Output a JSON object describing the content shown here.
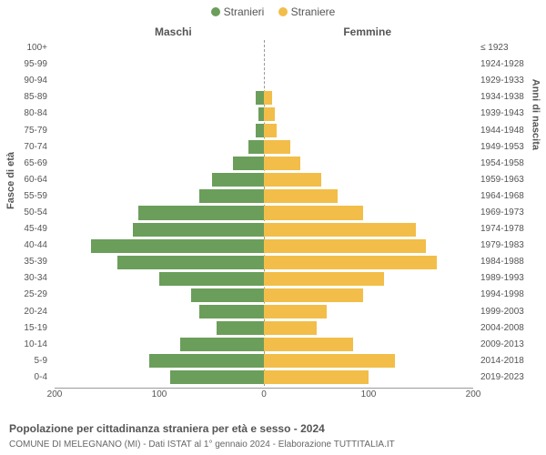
{
  "chart": {
    "type": "population-pyramid",
    "legend": {
      "male": {
        "label": "Stranieri",
        "color": "#6b9e5a"
      },
      "female": {
        "label": "Straniere",
        "color": "#f2be49"
      }
    },
    "side_title_left": "Maschi",
    "side_title_right": "Femmine",
    "y_axis_left_title": "Fasce di età",
    "y_axis_right_title": "Anni di nascita",
    "x_axis": {
      "max": 200,
      "ticks": [
        200,
        100,
        0,
        100,
        200
      ]
    },
    "bar_gap": 3,
    "age_groups": [
      "100+",
      "95-99",
      "90-94",
      "85-89",
      "80-84",
      "75-79",
      "70-74",
      "65-69",
      "60-64",
      "55-59",
      "50-54",
      "45-49",
      "40-44",
      "35-39",
      "30-34",
      "25-29",
      "20-24",
      "15-19",
      "10-14",
      "5-9",
      "0-4"
    ],
    "birth_years": [
      "≤ 1923",
      "1924-1928",
      "1929-1933",
      "1934-1938",
      "1939-1943",
      "1944-1948",
      "1949-1953",
      "1954-1958",
      "1959-1963",
      "1964-1968",
      "1969-1973",
      "1974-1978",
      "1979-1983",
      "1984-1988",
      "1989-1993",
      "1994-1998",
      "1999-2003",
      "2004-2008",
      "2009-2013",
      "2014-2018",
      "2019-2023"
    ],
    "male_values": [
      0,
      0,
      0,
      8,
      5,
      8,
      15,
      30,
      50,
      62,
      120,
      125,
      165,
      140,
      100,
      70,
      62,
      45,
      80,
      110,
      90
    ],
    "female_values": [
      0,
      0,
      0,
      8,
      10,
      12,
      25,
      35,
      55,
      70,
      95,
      145,
      155,
      165,
      115,
      95,
      60,
      50,
      85,
      125,
      100
    ],
    "caption_title": "Popolazione per cittadinanza straniera per età e sesso - 2024",
    "caption_sub": "COMUNE DI MELEGNANO (MI) - Dati ISTAT al 1° gennaio 2024 - Elaborazione TUTTITALIA.IT",
    "colors": {
      "background": "#ffffff",
      "axis": "#999999",
      "text": "#555555"
    }
  }
}
